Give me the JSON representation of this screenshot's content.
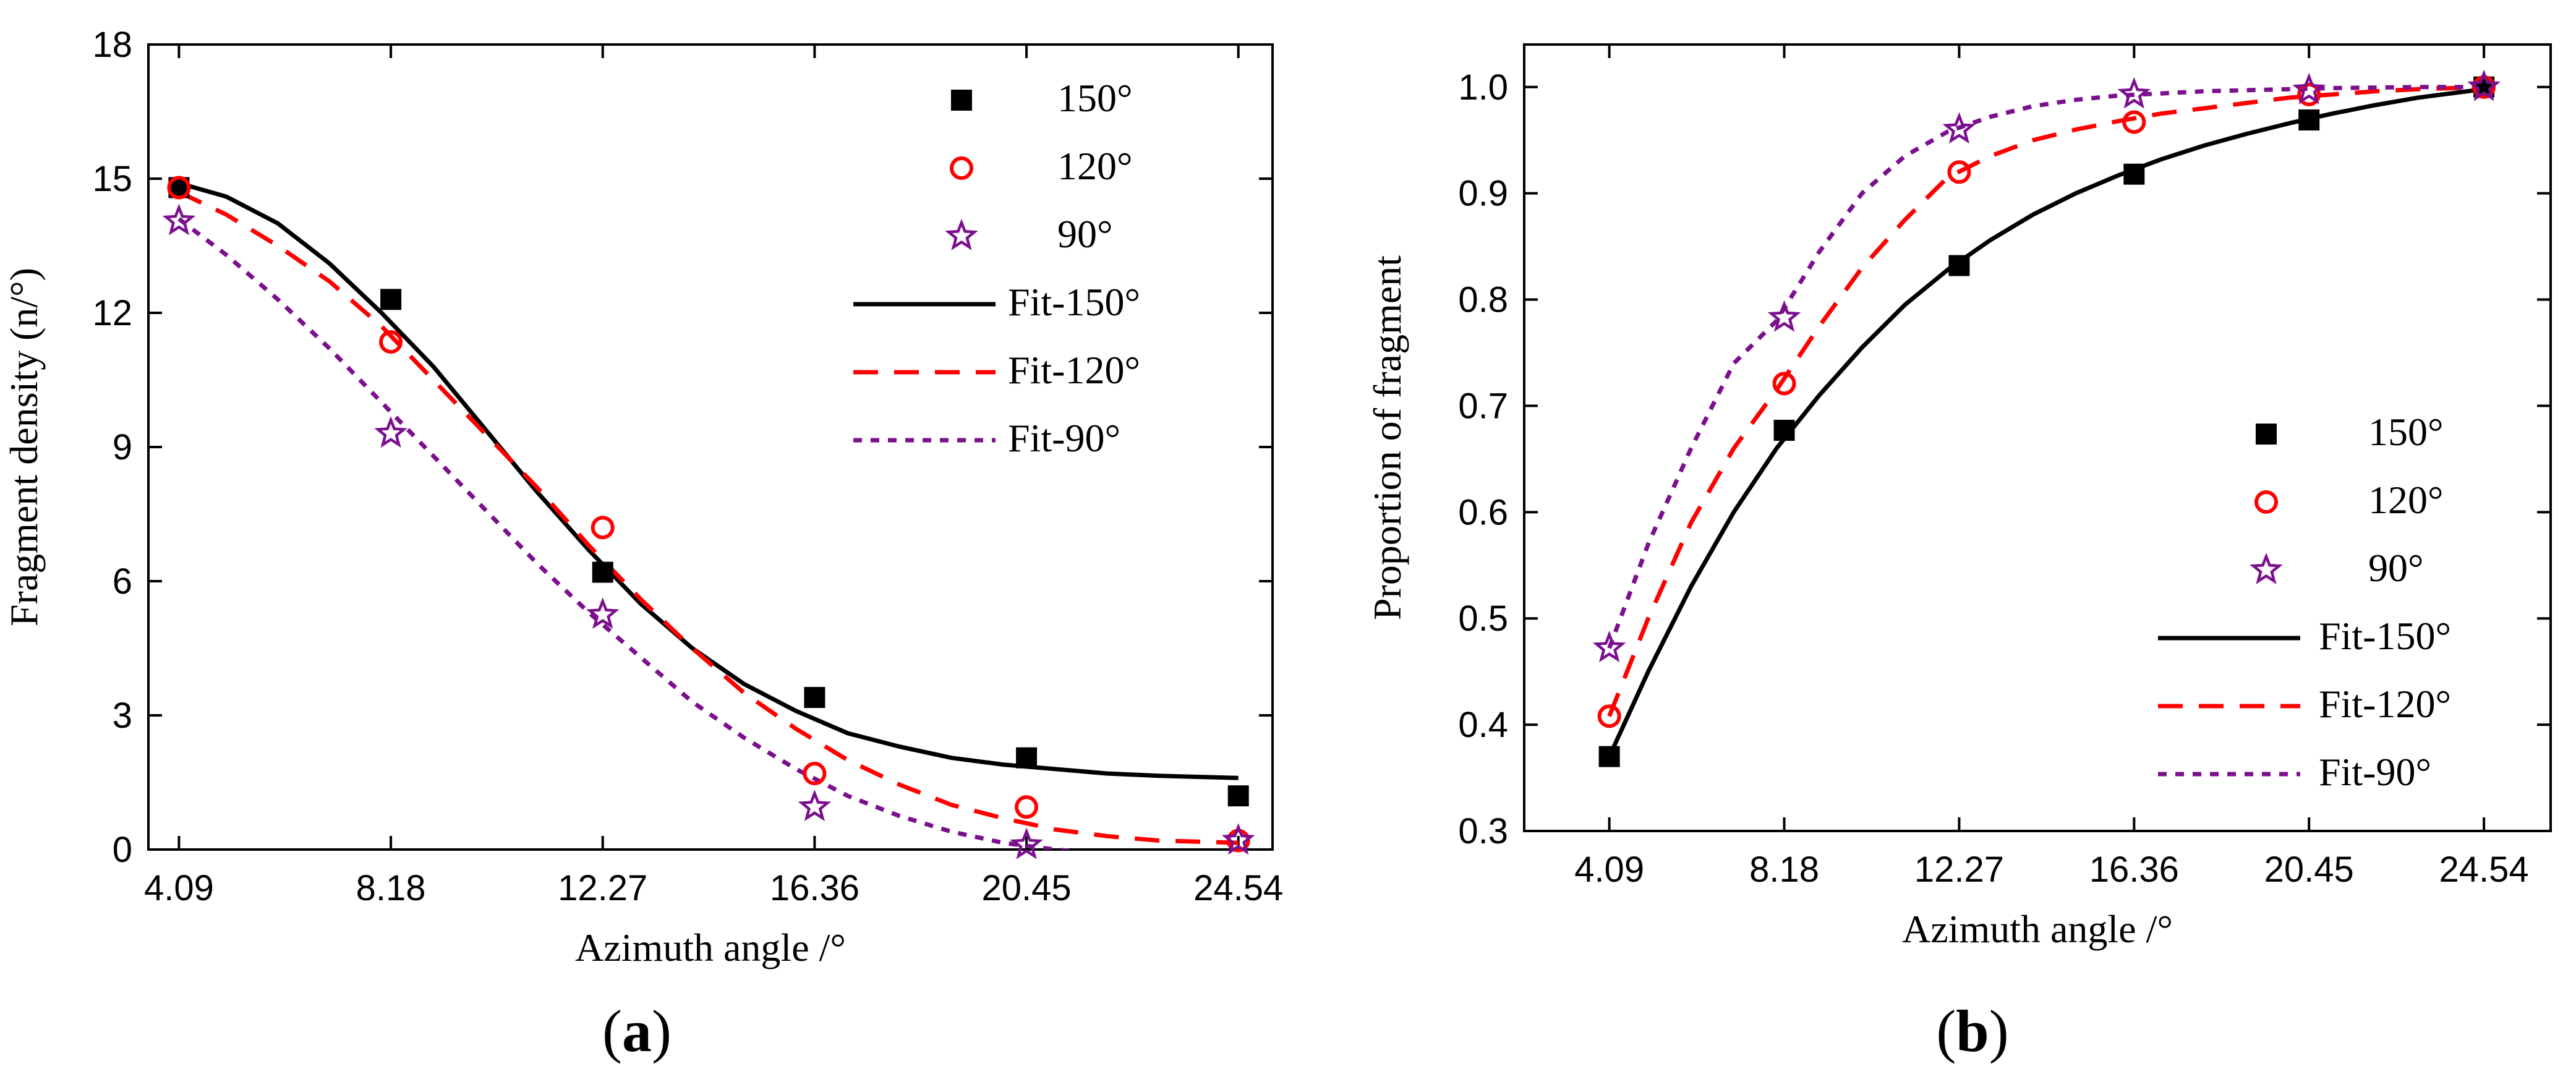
{
  "chart_data": [
    {
      "id": "a",
      "type": "scatter",
      "panel_label": "a",
      "xlabel": "Azimuth angle /°",
      "ylabel": "Fragment density (n/°)",
      "xlim": [
        3.5,
        25.2
      ],
      "ylim": [
        0,
        18
      ],
      "xticks": [
        "4.09",
        "8.18",
        "12.27",
        "16.36",
        "20.45",
        "24.54"
      ],
      "yticks": [
        "0",
        "3",
        "6",
        "9",
        "12",
        "15",
        "18"
      ],
      "legend_position": "top-right",
      "x": [
        4.09,
        8.18,
        12.27,
        16.36,
        20.45,
        24.54
      ],
      "series": [
        {
          "name": "150°",
          "marker": "square",
          "color": "#000000",
          "values": [
            14.8,
            12.3,
            6.2,
            3.4,
            2.05,
            1.2
          ]
        },
        {
          "name": "120°",
          "marker": "circle",
          "color": "#ff0000",
          "values": [
            14.8,
            11.35,
            7.2,
            1.7,
            0.95,
            0.2
          ]
        },
        {
          "name": "90°",
          "marker": "star",
          "color": "#7b0f8e",
          "values": [
            14.05,
            9.3,
            5.25,
            0.95,
            0.1,
            0.2
          ]
        }
      ],
      "fits": [
        {
          "name": "Fit-150°",
          "style": "solid",
          "color": "#000000",
          "x": [
            4.09,
            5,
            6,
            7,
            8,
            9,
            10,
            11,
            12,
            13,
            14,
            15,
            16,
            17,
            18,
            19,
            20,
            21,
            22,
            23,
            24.54
          ],
          "y": [
            14.9,
            14.6,
            14.0,
            13.1,
            12.0,
            10.8,
            9.4,
            8.0,
            6.7,
            5.5,
            4.5,
            3.7,
            3.1,
            2.6,
            2.3,
            2.05,
            1.9,
            1.8,
            1.7,
            1.65,
            1.6
          ]
        },
        {
          "name": "Fit-120°",
          "style": "dashed",
          "color": "#ff0000",
          "x": [
            4.09,
            5,
            6,
            7,
            8,
            9,
            10,
            11,
            12,
            13,
            14,
            15,
            16,
            17,
            18,
            19,
            20,
            21,
            22,
            23,
            24.54
          ],
          "y": [
            14.7,
            14.2,
            13.5,
            12.7,
            11.7,
            10.5,
            9.3,
            8.1,
            6.8,
            5.6,
            4.5,
            3.5,
            2.7,
            2.0,
            1.45,
            1.0,
            0.7,
            0.45,
            0.3,
            0.2,
            0.15
          ]
        },
        {
          "name": "Fit-90°",
          "style": "dotted",
          "color": "#7b0f8e",
          "x": [
            4.09,
            5,
            6,
            7,
            8,
            9,
            10,
            11,
            12,
            13,
            14,
            15,
            16,
            17,
            18,
            19,
            20,
            21,
            22
          ],
          "y": [
            14.1,
            13.3,
            12.3,
            11.2,
            10.0,
            8.8,
            7.6,
            6.4,
            5.3,
            4.3,
            3.3,
            2.5,
            1.8,
            1.2,
            0.75,
            0.4,
            0.15,
            0.0,
            -0.1
          ]
        }
      ]
    },
    {
      "id": "b",
      "type": "scatter",
      "panel_label": "b",
      "xlabel": "Azimuth angle /°",
      "ylabel": "Proportion of fragment",
      "xlim": [
        2.1,
        26.1
      ],
      "ylim": [
        0.3,
        1.04
      ],
      "xticks": [
        "4.09",
        "8.18",
        "12.27",
        "16.36",
        "20.45",
        "24.54"
      ],
      "yticks": [
        "0.3",
        "0.4",
        "0.5",
        "0.6",
        "0.7",
        "0.8",
        "0.9",
        "1.0"
      ],
      "legend_position": "bottom-right",
      "x": [
        4.09,
        8.18,
        12.27,
        16.36,
        20.45,
        24.54
      ],
      "series": [
        {
          "name": "150°",
          "marker": "square",
          "color": "#000000",
          "values": [
            0.37,
            0.677,
            0.832,
            0.918,
            0.969,
            1.0
          ]
        },
        {
          "name": "120°",
          "marker": "circle",
          "color": "#ff0000",
          "values": [
            0.408,
            0.721,
            0.92,
            0.967,
            0.993,
            1.0
          ]
        },
        {
          "name": "90°",
          "marker": "star",
          "color": "#7b0f8e",
          "values": [
            0.472,
            0.783,
            0.96,
            0.993,
            0.997,
            1.0
          ]
        }
      ],
      "fits": [
        {
          "name": "Fit-150°",
          "style": "solid",
          "color": "#000000",
          "x": [
            4.09,
            5,
            6,
            7,
            8,
            9,
            10,
            11,
            12,
            13,
            14,
            15,
            16,
            17,
            18,
            19,
            20,
            21,
            22,
            23,
            24.54
          ],
          "y": [
            0.37,
            0.45,
            0.53,
            0.6,
            0.66,
            0.71,
            0.755,
            0.795,
            0.828,
            0.856,
            0.88,
            0.9,
            0.917,
            0.932,
            0.945,
            0.956,
            0.966,
            0.975,
            0.983,
            0.99,
            0.998
          ]
        },
        {
          "name": "Fit-120°",
          "style": "dashed",
          "color": "#ff0000",
          "x": [
            4.09,
            5,
            6,
            7,
            8,
            9,
            10,
            11,
            12,
            13,
            14,
            15,
            16,
            17,
            18,
            19,
            20,
            21,
            22,
            23,
            24.54
          ],
          "y": [
            0.408,
            0.5,
            0.59,
            0.66,
            0.715,
            0.775,
            0.83,
            0.875,
            0.915,
            0.935,
            0.95,
            0.96,
            0.968,
            0.975,
            0.98,
            0.985,
            0.99,
            0.993,
            0.996,
            0.998,
            1.0
          ]
        },
        {
          "name": "Fit-90°",
          "style": "dotted",
          "color": "#7b0f8e",
          "x": [
            4.09,
            5,
            6,
            7,
            8,
            9,
            10,
            11,
            12,
            13,
            14,
            15,
            16,
            17,
            18,
            19,
            20,
            21,
            22,
            23,
            24.54
          ],
          "y": [
            0.472,
            0.57,
            0.66,
            0.74,
            0.78,
            0.845,
            0.9,
            0.935,
            0.958,
            0.972,
            0.982,
            0.988,
            0.992,
            0.994,
            0.996,
            0.997,
            0.998,
            0.999,
            0.9995,
            1.0,
            1.0
          ]
        }
      ]
    }
  ]
}
